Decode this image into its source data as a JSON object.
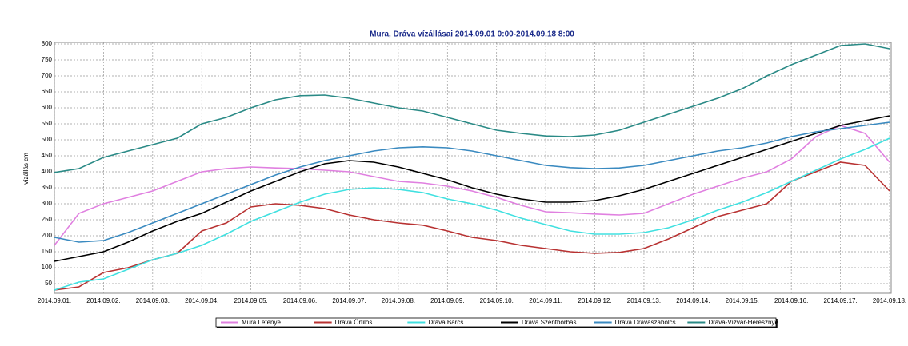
{
  "chart_data": {
    "type": "line",
    "title": "Mura, Dráva vízállásai 2014.09.01 0:00-2014.09.18 8:00",
    "y_label": "vízállás cm",
    "categories": [
      "2014.09.01.",
      null,
      "2014.09.02.",
      null,
      "2014.09.03.",
      null,
      "2014.09.04.",
      null,
      "2014.09.05.",
      null,
      "2014.09.06.",
      null,
      "2014.09.07.",
      null,
      "2014.09.08.",
      null,
      "2014.09.09.",
      null,
      "2014.09.10.",
      null,
      "2014.09.11.",
      null,
      "2014.09.12.",
      null,
      "2014.09.13.",
      null,
      "2014.09.14.",
      null,
      "2014.09.15.",
      null,
      "2014.09.16.",
      null,
      "2014.09.17.",
      null,
      "2014.09.18."
    ],
    "series": [
      {
        "name": "Mura Letenye",
        "color": "#e080e0",
        "values": [
          170,
          270,
          300,
          320,
          340,
          370,
          400,
          410,
          415,
          412,
          410,
          405,
          400,
          385,
          370,
          365,
          355,
          340,
          320,
          295,
          275,
          272,
          268,
          265,
          270,
          300,
          330,
          355,
          380,
          400,
          440,
          510,
          545,
          520,
          430
        ]
      },
      {
        "name": "Dráva Örtilos",
        "color": "#b83232",
        "values": [
          30,
          40,
          85,
          100,
          125,
          145,
          215,
          240,
          290,
          300,
          295,
          285,
          265,
          250,
          240,
          233,
          215,
          195,
          185,
          170,
          160,
          150,
          145,
          148,
          160,
          190,
          225,
          260,
          280,
          300,
          370,
          400,
          430,
          420,
          340
        ]
      },
      {
        "name": "Dráva Barcs",
        "color": "#40e0e0",
        "values": [
          30,
          55,
          65,
          95,
          125,
          145,
          170,
          205,
          245,
          275,
          305,
          330,
          345,
          350,
          345,
          335,
          315,
          300,
          280,
          255,
          235,
          215,
          205,
          205,
          210,
          225,
          250,
          280,
          305,
          335,
          370,
          405,
          440,
          470,
          505
        ]
      },
      {
        "name": "Dráva Szentborbás",
        "color": "#000000",
        "values": [
          120,
          135,
          150,
          180,
          215,
          245,
          270,
          305,
          340,
          370,
          400,
          425,
          435,
          430,
          415,
          395,
          375,
          350,
          330,
          315,
          305,
          305,
          310,
          325,
          345,
          370,
          395,
          420,
          445,
          470,
          495,
          520,
          545,
          560,
          575
        ]
      },
      {
        "name": "Dráva Drávaszabolcs",
        "color": "#3a8ac0",
        "values": [
          195,
          180,
          185,
          210,
          240,
          270,
          300,
          330,
          360,
          390,
          415,
          435,
          450,
          465,
          475,
          478,
          475,
          465,
          450,
          435,
          420,
          413,
          410,
          412,
          420,
          435,
          450,
          465,
          475,
          490,
          510,
          525,
          535,
          545,
          555
        ]
      },
      {
        "name": "Dráva-Vízvár-Heresznye",
        "color": "#2a8a86",
        "values": [
          398,
          410,
          445,
          465,
          485,
          505,
          550,
          570,
          600,
          625,
          638,
          640,
          630,
          615,
          600,
          590,
          570,
          550,
          530,
          520,
          512,
          510,
          515,
          530,
          555,
          580,
          605,
          630,
          660,
          700,
          735,
          765,
          795,
          800,
          785
        ]
      }
    ],
    "ylim": [
      20,
      805
    ],
    "yticks": [
      50,
      100,
      150,
      200,
      250,
      300,
      350,
      400,
      450,
      500,
      550,
      600,
      650,
      700,
      750,
      800
    ],
    "grid": true,
    "legend": "bottom"
  }
}
